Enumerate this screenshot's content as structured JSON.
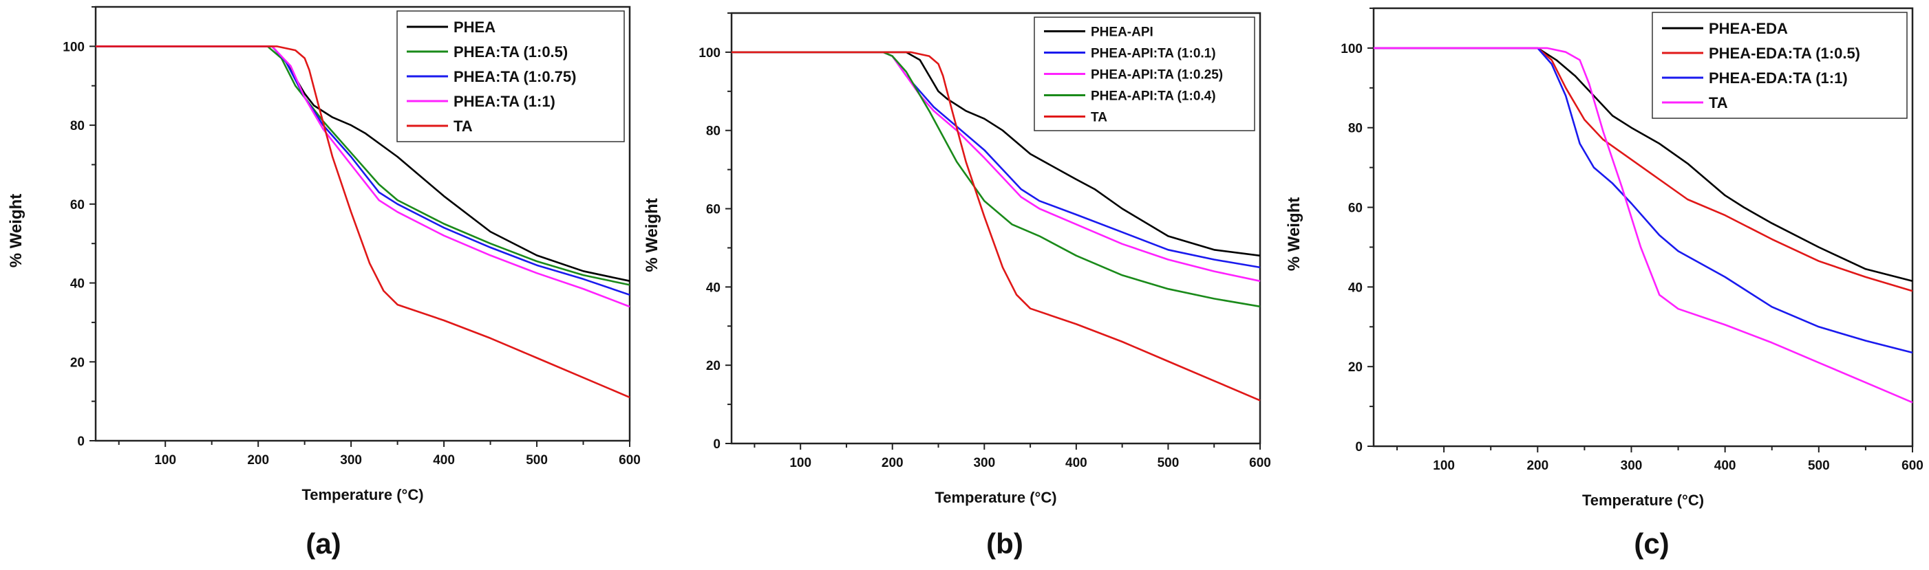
{
  "chart_data": [
    {
      "type": "line",
      "panel_label": "(a)",
      "xlabel": "Temperature (°C)",
      "ylabel": "% Weight",
      "xlim": [
        25,
        600
      ],
      "ylim": [
        0,
        110
      ],
      "xticks": [
        100,
        200,
        300,
        400,
        500,
        600
      ],
      "yticks": [
        0,
        20,
        40,
        60,
        80,
        100
      ],
      "grid": false,
      "legend_position": "top-right",
      "series": [
        {
          "name": "PHEA",
          "color": "#000000",
          "points": [
            [
              25,
              100
            ],
            [
              215,
              100
            ],
            [
              230,
              96
            ],
            [
              250,
              88
            ],
            [
              260,
              85
            ],
            [
              280,
              82
            ],
            [
              300,
              80
            ],
            [
              315,
              78
            ],
            [
              350,
              72
            ],
            [
              400,
              62
            ],
            [
              450,
              53
            ],
            [
              500,
              47
            ],
            [
              550,
              43
            ],
            [
              600,
              40.5
            ]
          ]
        },
        {
          "name": "PHEA:TA (1:0.5)",
          "color": "#1a8a1a",
          "points": [
            [
              25,
              100
            ],
            [
              210,
              100
            ],
            [
              225,
              97
            ],
            [
              240,
              90
            ],
            [
              250,
              87
            ],
            [
              270,
              81
            ],
            [
              300,
              73
            ],
            [
              330,
              65
            ],
            [
              350,
              61
            ],
            [
              400,
              55
            ],
            [
              450,
              50
            ],
            [
              500,
              45.5
            ],
            [
              550,
              42
            ],
            [
              600,
              39.5
            ]
          ]
        },
        {
          "name": "PHEA:TA (1:0.75)",
          "color": "#1a1aee",
          "points": [
            [
              25,
              100
            ],
            [
              215,
              100
            ],
            [
              230,
              96
            ],
            [
              250,
              87
            ],
            [
              270,
              80
            ],
            [
              300,
              72
            ],
            [
              330,
              63
            ],
            [
              350,
              60
            ],
            [
              400,
              54
            ],
            [
              450,
              49
            ],
            [
              500,
              44.5
            ],
            [
              550,
              41
            ],
            [
              600,
              37
            ]
          ]
        },
        {
          "name": "PHEA:TA (1:1)",
          "color": "#ff22ff",
          "points": [
            [
              25,
              100
            ],
            [
              215,
              100
            ],
            [
              235,
              95
            ],
            [
              250,
              87
            ],
            [
              270,
              79
            ],
            [
              300,
              70
            ],
            [
              330,
              61
            ],
            [
              350,
              58
            ],
            [
              400,
              52
            ],
            [
              450,
              47
            ],
            [
              500,
              42.5
            ],
            [
              550,
              38.5
            ],
            [
              600,
              34
            ]
          ]
        },
        {
          "name": "TA",
          "color": "#e01818",
          "points": [
            [
              25,
              100
            ],
            [
              220,
              100
            ],
            [
              240,
              99
            ],
            [
              250,
              97
            ],
            [
              255,
              94
            ],
            [
              265,
              85
            ],
            [
              280,
              72
            ],
            [
              300,
              58
            ],
            [
              320,
              45
            ],
            [
              335,
              38
            ],
            [
              350,
              34.5
            ],
            [
              400,
              30.5
            ],
            [
              450,
              26
            ],
            [
              500,
              21
            ],
            [
              550,
              16
            ],
            [
              600,
              11
            ]
          ]
        }
      ]
    },
    {
      "type": "line",
      "panel_label": "(b)",
      "xlabel": "Temperature (°C)",
      "ylabel": "% Weight",
      "xlim": [
        25,
        600
      ],
      "ylim": [
        0,
        110
      ],
      "xticks": [
        100,
        200,
        300,
        400,
        500,
        600
      ],
      "yticks": [
        0,
        20,
        40,
        60,
        80,
        100
      ],
      "grid": false,
      "legend_position": "top-right",
      "series": [
        {
          "name": "PHEA-API",
          "color": "#000000",
          "points": [
            [
              25,
              100
            ],
            [
              215,
              100
            ],
            [
              230,
              98
            ],
            [
              240,
              94
            ],
            [
              250,
              90
            ],
            [
              260,
              88
            ],
            [
              280,
              85
            ],
            [
              300,
              83
            ],
            [
              320,
              80
            ],
            [
              350,
              74
            ],
            [
              400,
              67.5
            ],
            [
              420,
              65
            ],
            [
              450,
              60
            ],
            [
              500,
              53
            ],
            [
              550,
              49.5
            ],
            [
              600,
              48
            ]
          ]
        },
        {
          "name": "PHEA-API:TA (1:0.1)",
          "color": "#1a1aee",
          "points": [
            [
              25,
              100
            ],
            [
              190,
              100
            ],
            [
              200,
              99
            ],
            [
              215,
              94
            ],
            [
              230,
              90
            ],
            [
              245,
              86
            ],
            [
              270,
              81
            ],
            [
              300,
              75
            ],
            [
              320,
              70
            ],
            [
              340,
              65
            ],
            [
              360,
              62
            ],
            [
              400,
              58.5
            ],
            [
              450,
              54
            ],
            [
              500,
              49.5
            ],
            [
              550,
              47
            ],
            [
              600,
              45
            ]
          ]
        },
        {
          "name": "PHEA-API:TA (1:0.25)",
          "color": "#ff22ff",
          "points": [
            [
              25,
              100
            ],
            [
              190,
              100
            ],
            [
              200,
              99
            ],
            [
              215,
              94
            ],
            [
              230,
              89
            ],
            [
              245,
              85
            ],
            [
              270,
              80
            ],
            [
              300,
              73
            ],
            [
              320,
              68
            ],
            [
              340,
              63
            ],
            [
              360,
              60
            ],
            [
              400,
              56
            ],
            [
              450,
              51
            ],
            [
              500,
              47
            ],
            [
              550,
              44
            ],
            [
              600,
              41.5
            ]
          ]
        },
        {
          "name": "PHEA-API:TA (1:0.4)",
          "color": "#1a8a1a",
          "points": [
            [
              25,
              100
            ],
            [
              190,
              100
            ],
            [
              200,
              99
            ],
            [
              215,
              95
            ],
            [
              240,
              85
            ],
            [
              270,
              72
            ],
            [
              300,
              62
            ],
            [
              330,
              56
            ],
            [
              360,
              53
            ],
            [
              400,
              48
            ],
            [
              450,
              43
            ],
            [
              500,
              39.5
            ],
            [
              550,
              37
            ],
            [
              600,
              35
            ]
          ]
        },
        {
          "name": "TA",
          "color": "#e01818",
          "points": [
            [
              25,
              100
            ],
            [
              220,
              100
            ],
            [
              240,
              99
            ],
            [
              250,
              97
            ],
            [
              255,
              94
            ],
            [
              265,
              85
            ],
            [
              280,
              72
            ],
            [
              300,
              58
            ],
            [
              320,
              45
            ],
            [
              335,
              38
            ],
            [
              350,
              34.5
            ],
            [
              400,
              30.5
            ],
            [
              450,
              26
            ],
            [
              500,
              21
            ],
            [
              550,
              16
            ],
            [
              600,
              11
            ]
          ]
        }
      ]
    },
    {
      "type": "line",
      "panel_label": "(c)",
      "xlabel": "Temperature (°C)",
      "ylabel": "% Weight",
      "xlim": [
        25,
        600
      ],
      "ylim": [
        0,
        110
      ],
      "xticks": [
        100,
        200,
        300,
        400,
        500,
        600
      ],
      "yticks": [
        0,
        20,
        40,
        60,
        80,
        100
      ],
      "grid": false,
      "legend_position": "top-right",
      "series": [
        {
          "name": "PHEA-EDA",
          "color": "#000000",
          "points": [
            [
              25,
              100
            ],
            [
              200,
              100
            ],
            [
              220,
              97
            ],
            [
              240,
              93
            ],
            [
              260,
              88
            ],
            [
              280,
              83
            ],
            [
              300,
              80
            ],
            [
              330,
              76
            ],
            [
              360,
              71
            ],
            [
              400,
              63
            ],
            [
              420,
              60
            ],
            [
              450,
              56
            ],
            [
              500,
              50
            ],
            [
              550,
              44.5
            ],
            [
              600,
              41.5
            ]
          ]
        },
        {
          "name": "PHEA-EDA:TA (1:0.5)",
          "color": "#e01818",
          "points": [
            [
              25,
              100
            ],
            [
              200,
              100
            ],
            [
              215,
              97
            ],
            [
              230,
              90
            ],
            [
              250,
              82
            ],
            [
              270,
              77
            ],
            [
              300,
              72
            ],
            [
              330,
              67
            ],
            [
              360,
              62
            ],
            [
              400,
              58
            ],
            [
              450,
              52
            ],
            [
              500,
              46.5
            ],
            [
              550,
              42.5
            ],
            [
              600,
              39
            ]
          ]
        },
        {
          "name": "PHEA-EDA:TA (1:1)",
          "color": "#1a1aee",
          "points": [
            [
              25,
              100
            ],
            [
              200,
              100
            ],
            [
              215,
              96
            ],
            [
              230,
              88
            ],
            [
              245,
              76
            ],
            [
              260,
              70
            ],
            [
              280,
              66
            ],
            [
              300,
              61
            ],
            [
              330,
              53
            ],
            [
              350,
              49
            ],
            [
              400,
              42.5
            ],
            [
              450,
              35
            ],
            [
              500,
              30
            ],
            [
              550,
              26.5
            ],
            [
              600,
              23.5
            ]
          ]
        },
        {
          "name": "TA",
          "color": "#ff22ff",
          "points": [
            [
              25,
              100
            ],
            [
              210,
              100
            ],
            [
              230,
              99
            ],
            [
              245,
              97
            ],
            [
              255,
              91
            ],
            [
              270,
              79
            ],
            [
              290,
              65
            ],
            [
              310,
              50
            ],
            [
              330,
              38
            ],
            [
              350,
              34.5
            ],
            [
              400,
              30.5
            ],
            [
              450,
              26
            ],
            [
              500,
              21
            ],
            [
              550,
              16
            ],
            [
              600,
              11
            ]
          ]
        }
      ]
    }
  ]
}
